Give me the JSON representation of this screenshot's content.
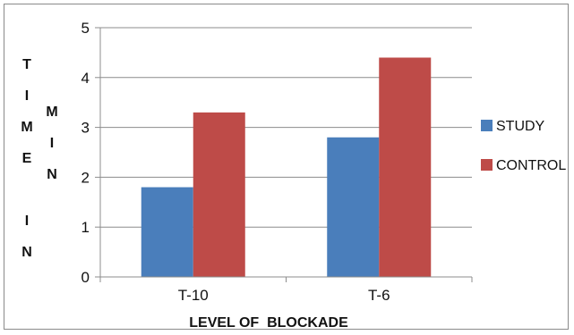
{
  "chart_data": {
    "type": "bar",
    "categories": [
      "T-10",
      "T-6"
    ],
    "series": [
      {
        "name": "STUDY",
        "values": [
          1.8,
          2.8
        ],
        "color": "#4a7ebb"
      },
      {
        "name": "CONTROL",
        "values": [
          3.3,
          4.4
        ],
        "color": "#be4b48"
      }
    ],
    "title": "",
    "xlabel": "LEVEL OF  BLOCKADE",
    "ylabel": "TIME IN MIN",
    "ylabel_columns": [
      [
        "T",
        "I",
        "M",
        "E",
        "",
        "I",
        "N"
      ],
      [
        "M",
        "I",
        "N"
      ]
    ],
    "ylim": [
      0,
      5
    ],
    "yticks": [
      "0",
      "1",
      "2",
      "3",
      "4",
      "5"
    ],
    "grid": true,
    "legend_position": "right"
  }
}
